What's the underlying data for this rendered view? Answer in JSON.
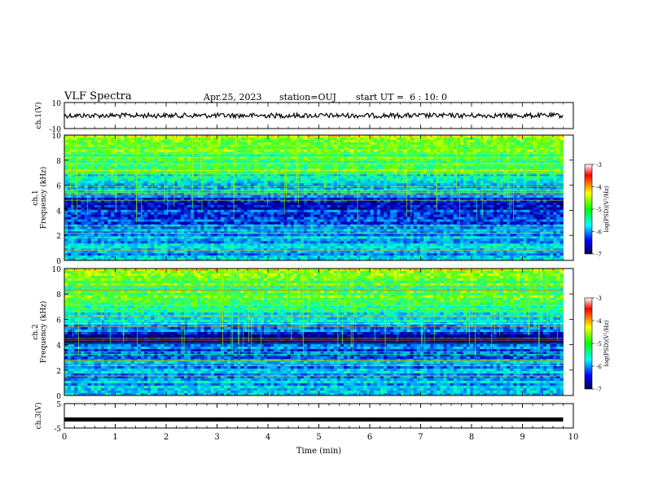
{
  "header": {
    "title": "VLF Spectra",
    "date": "Apr.25, 2023",
    "station": "station=OUJ",
    "start": "start UT =  6 : 10: 0"
  },
  "chart_data": [
    {
      "type": "line",
      "panel": "ch1-waveform",
      "ylabel": "ch.1(V)",
      "ylim": [
        -10,
        10
      ],
      "yticks": [
        "10",
        "-10"
      ],
      "xlim": [
        0,
        10
      ],
      "series": [
        {
          "x": [
            0,
            9.8
          ],
          "values": [
            0,
            0
          ]
        }
      ]
    },
    {
      "type": "heatmap",
      "panel": "ch1-spectrogram",
      "ylabel": "ch.1 Frequency (kHz)",
      "xlim": [
        0,
        10
      ],
      "ylim": [
        0,
        10
      ],
      "yticks": [
        "0",
        "2",
        "4",
        "6",
        "8",
        "10"
      ],
      "data_end_min": 9.8,
      "colorbar": {
        "label": "log(PSD)(V²/Hz)",
        "range": [
          -7,
          -3
        ],
        "ticks": [
          "-3",
          "-4",
          "-5",
          "-6",
          "-7"
        ]
      }
    },
    {
      "type": "heatmap",
      "panel": "ch2-spectrogram",
      "ylabel": "ch.2 Frequency (kHz)",
      "xlim": [
        0,
        10
      ],
      "ylim": [
        0,
        10
      ],
      "yticks": [
        "0",
        "2",
        "4",
        "6",
        "8",
        "10"
      ],
      "data_end_min": 9.8,
      "colorbar": {
        "label": "log(PSD)(V²/Hz)",
        "range": [
          -7,
          -3
        ],
        "ticks": [
          "-3",
          "-4",
          "-5",
          "-6",
          "-7"
        ]
      }
    },
    {
      "type": "line",
      "panel": "ch3-waveform",
      "ylabel": "ch.3(V)",
      "ylim": [
        -5,
        5
      ],
      "yticks": [
        "5",
        "-5"
      ],
      "xlim": [
        0,
        10
      ],
      "series": [
        {
          "x": [
            0,
            9.8
          ],
          "values": [
            -1.5,
            -1.5
          ]
        }
      ]
    }
  ],
  "xaxis": {
    "label": "Time (min)",
    "ticks": [
      "0",
      "1",
      "2",
      "3",
      "4",
      "5",
      "6",
      "7",
      "8",
      "9",
      "10"
    ]
  }
}
